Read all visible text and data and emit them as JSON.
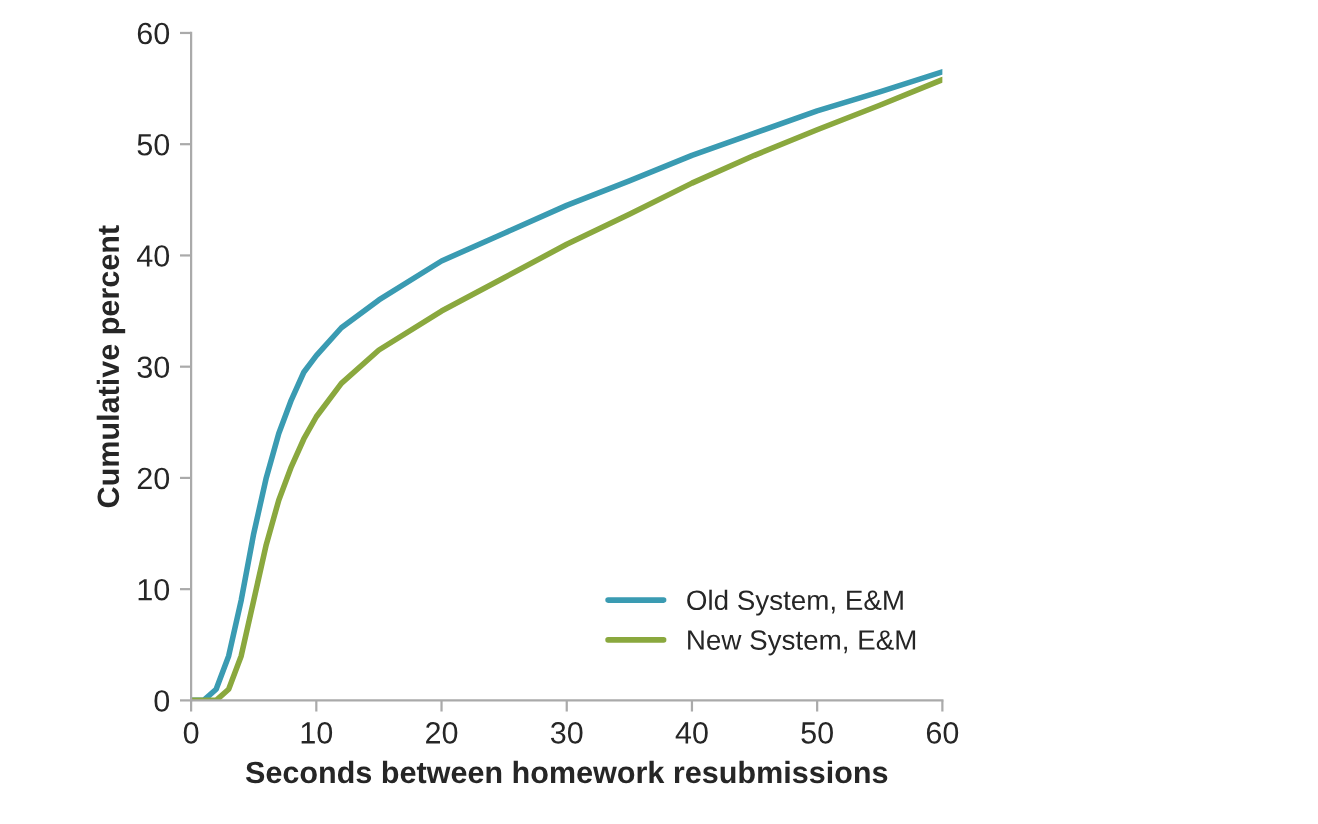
{
  "chart_data": {
    "type": "line",
    "xlabel": "Seconds between homework resubmissions",
    "ylabel": "Cumulative percent",
    "xlim": [
      0,
      60
    ],
    "ylim": [
      0,
      60
    ],
    "xticks": [
      0,
      10,
      20,
      30,
      40,
      50,
      60
    ],
    "yticks": [
      0,
      10,
      20,
      30,
      40,
      50,
      60
    ],
    "grid": false,
    "legend": "bottom right",
    "marker": "none",
    "line_style": "solid",
    "series": [
      {
        "name": "Old System, E&M",
        "color": "#3a9bb2",
        "x": [
          0,
          1,
          2,
          3,
          4,
          5,
          6,
          7,
          8,
          9,
          10,
          12,
          15,
          20,
          25,
          30,
          35,
          40,
          45,
          50,
          55,
          60
        ],
        "values": [
          0,
          0,
          1,
          4,
          9,
          15,
          20,
          24,
          27,
          29.5,
          31,
          33.5,
          36,
          39.5,
          42,
          44.5,
          46.7,
          49,
          51,
          53,
          54.7,
          56.5
        ]
      },
      {
        "name": "New System, E&M",
        "color": "#8aa83e",
        "x": [
          0,
          1,
          2,
          3,
          4,
          5,
          6,
          7,
          8,
          9,
          10,
          12,
          15,
          20,
          25,
          30,
          35,
          40,
          45,
          50,
          55,
          60
        ],
        "values": [
          0,
          0,
          0,
          1,
          4,
          9,
          14,
          18,
          21,
          23.5,
          25.5,
          28.5,
          31.5,
          35,
          38,
          41,
          43.7,
          46.5,
          49,
          51.3,
          53.5,
          55.8
        ]
      }
    ]
  }
}
